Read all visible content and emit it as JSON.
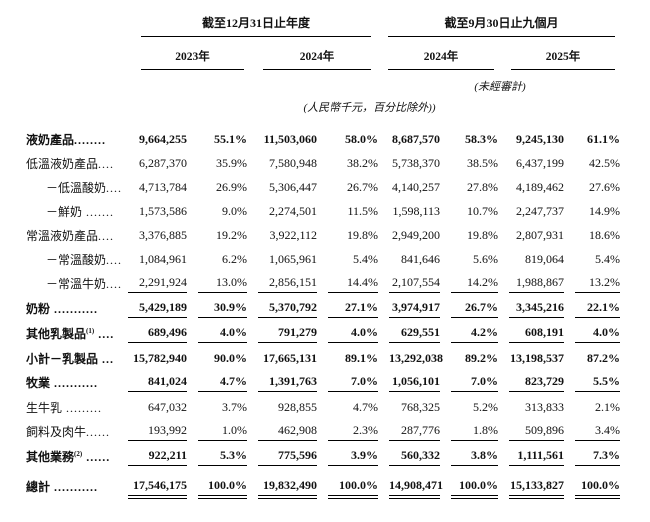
{
  "table": {
    "header": {
      "group1": "截至12月31日止年度",
      "group2": "截至9月30日止九個月",
      "years": [
        "2023年",
        "2024年",
        "2024年",
        "2025年"
      ],
      "unaudited_note": "(未經審計)",
      "unit_note": "(人民幣千元，百分比除外))"
    },
    "rows": [
      {
        "label": "液奶產品",
        "sup": "",
        "dots": "........",
        "indent": 0,
        "bold": true,
        "rule": "",
        "values": [
          "9,664,255",
          "55.1%",
          "11,503,060",
          "58.0%",
          "8,687,570",
          "58.3%",
          "9,245,130",
          "61.1%"
        ]
      },
      {
        "label": "低溫液奶產品",
        "sup": "",
        "dots": "....",
        "indent": 0,
        "bold": false,
        "rule": "",
        "values": [
          "6,287,370",
          "35.9%",
          "7,580,948",
          "38.2%",
          "5,738,370",
          "38.5%",
          "6,437,199",
          "42.5%"
        ]
      },
      {
        "label": "－低溫酸奶",
        "sup": "",
        "dots": "....",
        "indent": 1,
        "bold": false,
        "rule": "",
        "values": [
          "4,713,784",
          "26.9%",
          "5,306,447",
          "26.7%",
          "4,140,257",
          "27.8%",
          "4,189,462",
          "27.6%"
        ]
      },
      {
        "label": "－鮮奶",
        "sup": "",
        "dots": " .......",
        "indent": 1,
        "bold": false,
        "rule": "",
        "values": [
          "1,573,586",
          "9.0%",
          "2,274,501",
          "11.5%",
          "1,598,113",
          "10.7%",
          "2,247,737",
          "14.9%"
        ]
      },
      {
        "label": "常溫液奶產品",
        "sup": "",
        "dots": "....",
        "indent": 0,
        "bold": false,
        "rule": "",
        "values": [
          "3,376,885",
          "19.2%",
          "3,922,112",
          "19.8%",
          "2,949,200",
          "19.8%",
          "2,807,931",
          "18.6%"
        ]
      },
      {
        "label": "－常溫酸奶",
        "sup": "",
        "dots": "....",
        "indent": 1,
        "bold": false,
        "rule": "",
        "values": [
          "1,084,961",
          "6.2%",
          "1,065,961",
          "5.4%",
          "841,646",
          "5.6%",
          "819,064",
          "5.4%"
        ]
      },
      {
        "label": "－常溫牛奶",
        "sup": "",
        "dots": "....",
        "indent": 1,
        "bold": false,
        "rule": "single",
        "values": [
          "2,291,924",
          "13.0%",
          "2,856,151",
          "14.4%",
          "2,107,554",
          "14.2%",
          "1,988,867",
          "13.2%"
        ]
      },
      {
        "label": "奶粉",
        "sup": "",
        "dots": " ...........",
        "indent": 0,
        "bold": true,
        "rule": "single",
        "values": [
          "5,429,189",
          "30.9%",
          "5,370,792",
          "27.1%",
          "3,974,917",
          "26.7%",
          "3,345,216",
          "22.1%"
        ]
      },
      {
        "label": "其他乳製品",
        "sup": "(1)",
        "dots": " ....",
        "indent": 0,
        "bold": true,
        "rule": "single",
        "values": [
          "689,496",
          "4.0%",
          "791,279",
          "4.0%",
          "629,551",
          "4.2%",
          "608,191",
          "4.0%"
        ]
      },
      {
        "label": "小計－乳製品",
        "sup": "",
        "dots": " ...",
        "indent": 0,
        "bold": true,
        "rule": "",
        "values": [
          "15,782,940",
          "90.0%",
          "17,665,131",
          "89.1%",
          "13,292,038",
          "89.2%",
          "13,198,537",
          "87.2%"
        ]
      },
      {
        "label": "牧業",
        "sup": "",
        "dots": " ...........",
        "indent": 0,
        "bold": true,
        "rule": "single",
        "values": [
          "841,024",
          "4.7%",
          "1,391,763",
          "7.0%",
          "1,056,101",
          "7.0%",
          "823,729",
          "5.5%"
        ]
      },
      {
        "label": "生牛乳",
        "sup": "",
        "dots": " .........",
        "indent": 0,
        "bold": false,
        "rule": "",
        "values": [
          "647,032",
          "3.7%",
          "928,855",
          "4.7%",
          "768,325",
          "5.2%",
          "313,833",
          "2.1%"
        ]
      },
      {
        "label": "飼料及肉牛",
        "sup": "",
        "dots": "......",
        "indent": 0,
        "bold": false,
        "rule": "single",
        "values": [
          "193,992",
          "1.0%",
          "462,908",
          "2.3%",
          "287,776",
          "1.8%",
          "509,896",
          "3.4%"
        ]
      },
      {
        "label": "其他業務",
        "sup": "(2)",
        "dots": " ......",
        "indent": 0,
        "bold": true,
        "rule": "single",
        "values": [
          "922,211",
          "5.3%",
          "775,596",
          "3.9%",
          "560,332",
          "3.8%",
          "1,111,561",
          "7.3%"
        ]
      },
      {
        "label": "總計",
        "sup": "",
        "dots": " ...........",
        "indent": 0,
        "bold": true,
        "rule": "double",
        "values": [
          "17,546,175",
          "100.0%",
          "19,832,490",
          "100.0%",
          "14,908,471",
          "100.0%",
          "15,133,827",
          "100.0%"
        ]
      }
    ]
  }
}
